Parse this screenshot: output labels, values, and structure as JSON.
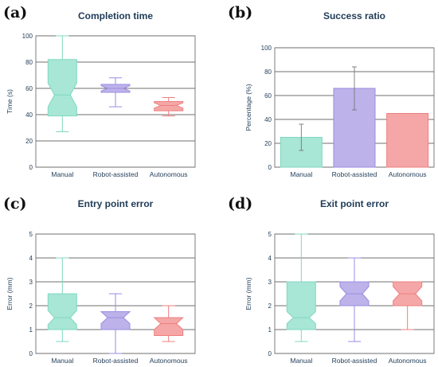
{
  "chart_data": [
    {
      "panel": "(a)",
      "type": "box",
      "title": "Completion time",
      "ylabel": "Time (s)",
      "ylim": [
        0,
        100
      ],
      "yticks": [
        0,
        20,
        40,
        60,
        80,
        100
      ],
      "grid": true,
      "categories": [
        "Manual",
        "Robot-assisted",
        "Autonomous"
      ],
      "colors": [
        "#a8e6d6",
        "#bdb2ea",
        "#f5a7a7"
      ],
      "stroke_colors": [
        "#7fd8c0",
        "#9a8de0",
        "#ee7f7f"
      ],
      "boxes": [
        {
          "whisker_low": 27,
          "q1": 39,
          "median": 55,
          "q3": 82,
          "whisker_high": 100,
          "notch_low": 46,
          "notch_high": 64
        },
        {
          "whisker_low": 46,
          "q1": 57,
          "median": 60,
          "q3": 63,
          "whisker_high": 68,
          "notch_low": 58,
          "notch_high": 62
        },
        {
          "whisker_low": 39,
          "q1": 43,
          "median": 47,
          "q3": 50,
          "whisker_high": 53,
          "notch_low": 45,
          "notch_high": 49
        }
      ]
    },
    {
      "panel": "(b)",
      "type": "bar",
      "title": "Success ratio",
      "ylabel": "Percentage (%)",
      "ylim": [
        0,
        100
      ],
      "yticks": [
        0,
        20,
        40,
        60,
        80,
        100
      ],
      "grid": true,
      "categories": [
        "Manual",
        "Robot-assisted",
        "Autonomous"
      ],
      "colors": [
        "#a8e6d6",
        "#bdb2ea",
        "#f5a7a7"
      ],
      "stroke_colors": [
        "#7fd8c0",
        "#9a8de0",
        "#ee7f7f"
      ],
      "values": [
        25,
        66,
        45
      ],
      "error_low": [
        14,
        48,
        null
      ],
      "error_high": [
        36,
        84,
        null
      ]
    },
    {
      "panel": "(c)",
      "type": "box",
      "title": "Entry point error",
      "ylabel": "Error (mm)",
      "ylim": [
        0,
        5
      ],
      "yticks": [
        0,
        1,
        2,
        3,
        4,
        5
      ],
      "grid": true,
      "categories": [
        "Manual",
        "Robot-assisted",
        "Autonomous"
      ],
      "colors": [
        "#a8e6d6",
        "#bdb2ea",
        "#f5a7a7"
      ],
      "stroke_colors": [
        "#7fd8c0",
        "#9a8de0",
        "#ee7f7f"
      ],
      "boxes": [
        {
          "whisker_low": 0.5,
          "q1": 1.0,
          "median": 1.5,
          "q3": 2.5,
          "whisker_high": 4.0,
          "notch_low": 1.2,
          "notch_high": 1.8
        },
        {
          "whisker_low": 0.0,
          "q1": 1.0,
          "median": 1.5,
          "q3": 1.75,
          "whisker_high": 2.5,
          "notch_low": 1.25,
          "notch_high": 1.75
        },
        {
          "whisker_low": 0.5,
          "q1": 0.75,
          "median": 1.25,
          "q3": 1.5,
          "whisker_high": 2.0,
          "notch_low": 1.0,
          "notch_high": 1.6
        }
      ]
    },
    {
      "panel": "(d)",
      "type": "box",
      "title": "Exit point error",
      "ylabel": "Error (mm)",
      "ylim": [
        0,
        5
      ],
      "yticks": [
        0,
        1,
        2,
        3,
        4,
        5
      ],
      "grid": true,
      "categories": [
        "Manual",
        "Robot-assisted",
        "Autonomous"
      ],
      "colors": [
        "#a8e6d6",
        "#bdb2ea",
        "#f5a7a7"
      ],
      "stroke_colors": [
        "#7fd8c0",
        "#9a8de0",
        "#ee7f7f"
      ],
      "boxes": [
        {
          "whisker_low": 0.5,
          "q1": 1.0,
          "median": 1.5,
          "q3": 3.0,
          "whisker_high": 5.0,
          "notch_low": 1.25,
          "notch_high": 1.75
        },
        {
          "whisker_low": 0.5,
          "q1": 2.0,
          "median": 2.5,
          "q3": 3.0,
          "whisker_high": 4.0,
          "notch_low": 2.2,
          "notch_high": 2.8
        },
        {
          "whisker_low": 1.0,
          "q1": 2.0,
          "median": 2.5,
          "q3": 3.0,
          "whisker_high": 3.0,
          "notch_low": 2.2,
          "notch_high": 2.8
        }
      ]
    }
  ]
}
